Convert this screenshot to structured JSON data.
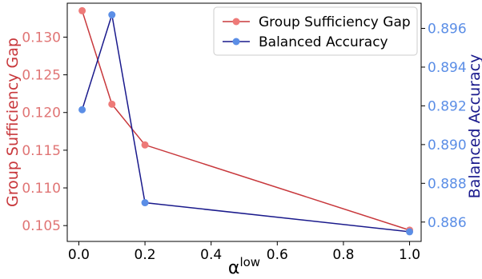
{
  "chart_data": {
    "type": "line",
    "xlabel_base": "α",
    "xlabel_sup": "low",
    "xlim": [
      -0.035,
      1.035
    ],
    "xticks": [
      0.0,
      0.2,
      0.4,
      0.6,
      0.8,
      1.0
    ],
    "xtick_labels": [
      "0.0",
      "0.2",
      "0.4",
      "0.6",
      "0.8",
      "1.0"
    ],
    "left_axis": {
      "label": "Group Sufficiency Gap",
      "color": "#e07575",
      "label_color": "#c8383c",
      "ylim": [
        0.1029,
        0.1345
      ],
      "ticks": [
        0.105,
        0.11,
        0.115,
        0.12,
        0.125,
        0.13
      ],
      "tick_labels": [
        "0.105",
        "0.110",
        "0.115",
        "0.120",
        "0.125",
        "0.130"
      ]
    },
    "right_axis": {
      "label": "Balanced Accuracy",
      "color": "#5b8ee6",
      "label_color": "#1a1a8c",
      "ylim": [
        0.885,
        0.8973
      ],
      "ticks": [
        0.886,
        0.888,
        0.89,
        0.892,
        0.894,
        0.896
      ],
      "tick_labels": [
        "0.886",
        "0.888",
        "0.890",
        "0.892",
        "0.894",
        "0.896"
      ]
    },
    "series": [
      {
        "name": "Group Sufficiency Gap",
        "axis": "left",
        "line_color": "#c8383c",
        "marker_color": "#ee7a78",
        "x": [
          0.01,
          0.1,
          0.2,
          1.0
        ],
        "y": [
          0.1335,
          0.1211,
          0.1157,
          0.1044
        ]
      },
      {
        "name": "Balanced Accuracy",
        "axis": "right",
        "line_color": "#1a1a8c",
        "marker_color": "#5b8ee6",
        "x": [
          0.01,
          0.1,
          0.2,
          1.0
        ],
        "y": [
          0.8918,
          0.8967,
          0.887,
          0.8855
        ]
      }
    ],
    "legend_placement": "top-right",
    "grid": false
  }
}
